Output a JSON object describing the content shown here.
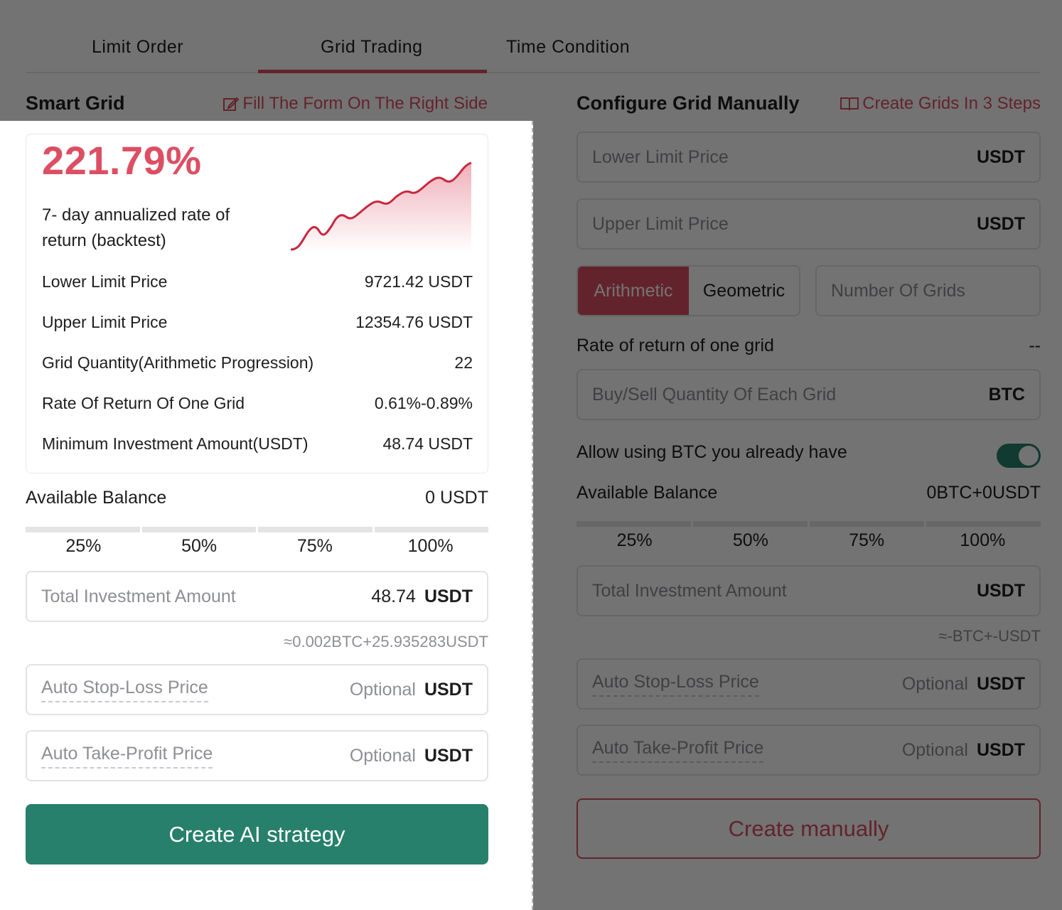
{
  "tabs": [
    {
      "label": "Limit Order",
      "active": false
    },
    {
      "label": "Grid Trading",
      "active": true
    },
    {
      "label": "Time Condition",
      "active": false
    }
  ],
  "smart_grid": {
    "title": "Smart Grid",
    "fill_link": "Fill The Form On The Right Side",
    "rate": "221.79%",
    "rate_desc": "7- day annualized rate of return (backtest)",
    "details": [
      {
        "label": "Lower Limit Price",
        "value": "9721.42 USDT"
      },
      {
        "label": "Upper Limit Price",
        "value": "12354.76 USDT"
      },
      {
        "label": "Grid Quantity(Arithmetic Progression)",
        "value": "22"
      },
      {
        "label": "Rate Of Return Of One Grid",
        "value": "0.61%-0.89%"
      },
      {
        "label": "Minimum Investment Amount(USDT)",
        "value": "48.74 USDT"
      }
    ],
    "available_balance_label": "Available Balance",
    "available_balance_value": "0 USDT",
    "percentages": [
      "25%",
      "50%",
      "75%",
      "100%"
    ],
    "total_investment": {
      "placeholder": "Total Investment Amount",
      "value": "48.74",
      "unit": "USDT"
    },
    "approx": "≈0.002BTC+25.935283USDT",
    "stop_loss": {
      "label": "Auto Stop-Loss Price",
      "optional": "Optional",
      "unit": "USDT"
    },
    "take_profit": {
      "label": "Auto Take-Profit Price",
      "optional": "Optional",
      "unit": "USDT"
    },
    "create_button": "Create AI strategy"
  },
  "manual": {
    "title": "Configure Grid Manually",
    "steps_link": "Create Grids In 3 Steps",
    "lower": {
      "placeholder": "Lower Limit Price",
      "unit": "USDT"
    },
    "upper": {
      "placeholder": "Upper Limit Price",
      "unit": "USDT"
    },
    "mode_arith": "Arithmetic",
    "mode_geo": "Geometric",
    "grid_count_placeholder": "Number Of Grids",
    "rate_one_grid_label": "Rate of return of one grid",
    "rate_one_grid_value": "--",
    "qty": {
      "placeholder": "Buy/Sell Quantity Of Each Grid",
      "unit": "BTC"
    },
    "allow_btc_label": "Allow using BTC you already have",
    "allow_btc_on": true,
    "available_balance_label": "Available Balance",
    "available_balance_value": "0BTC+0USDT",
    "percentages": [
      "25%",
      "50%",
      "75%",
      "100%"
    ],
    "total_investment": {
      "placeholder": "Total Investment Amount",
      "unit": "USDT"
    },
    "approx": "≈-BTC+-USDT",
    "stop_loss": {
      "label": "Auto Stop-Loss Price",
      "optional": "Optional",
      "unit": "USDT"
    },
    "take_profit": {
      "label": "Auto Take-Profit Price",
      "optional": "Optional",
      "unit": "USDT"
    },
    "create_button": "Create manually"
  },
  "colors": {
    "accent": "#dc4f63",
    "primary": "#27806b",
    "overlay": "rgba(0,0,0,0.55)"
  }
}
